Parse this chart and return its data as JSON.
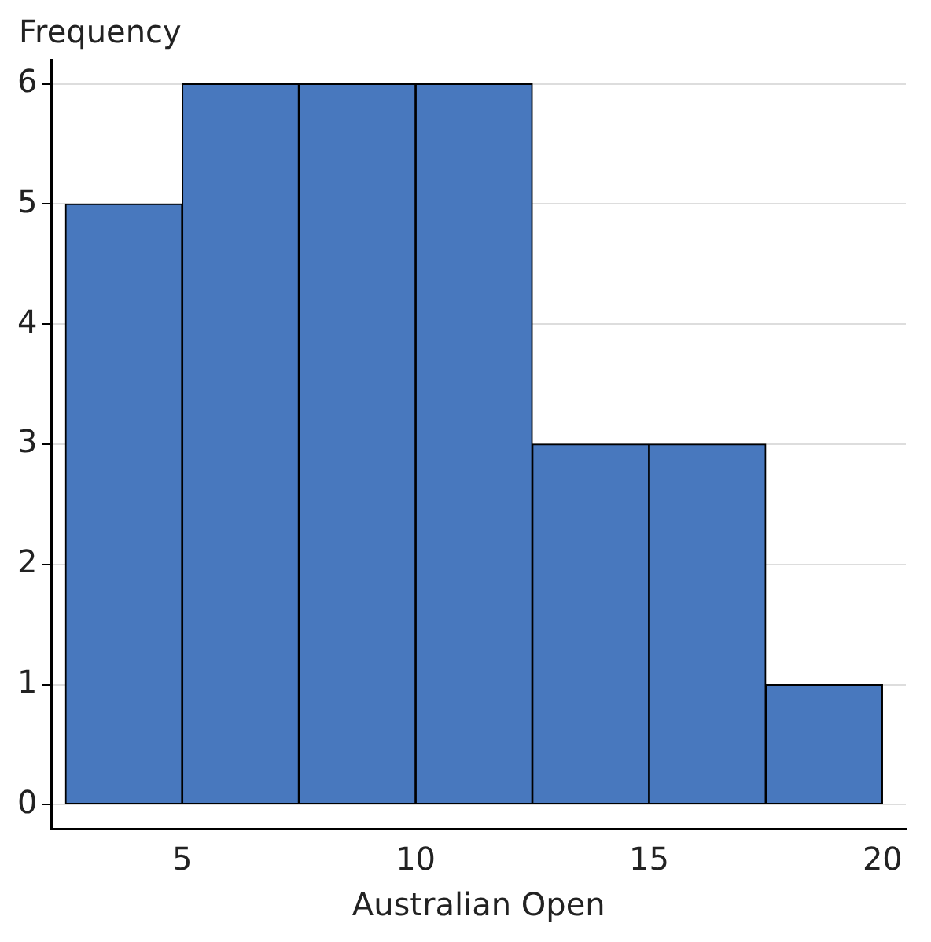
{
  "chart_data": {
    "type": "histogram",
    "xlabel": "Australian Open",
    "ylabel": "Frequency",
    "bins": [
      2.5,
      5,
      7.5,
      10,
      12.5,
      15,
      17.5,
      20
    ],
    "values": [
      5,
      6,
      6,
      6,
      3,
      3,
      1
    ],
    "color": "#4878be",
    "xlim": [
      2.2,
      20.5
    ],
    "xticks": [
      5,
      10,
      15,
      20
    ],
    "ylim": [
      -0.2,
      6.2
    ],
    "yticks": [
      0,
      1,
      2,
      3,
      4,
      5,
      6
    ],
    "grid": "y"
  }
}
